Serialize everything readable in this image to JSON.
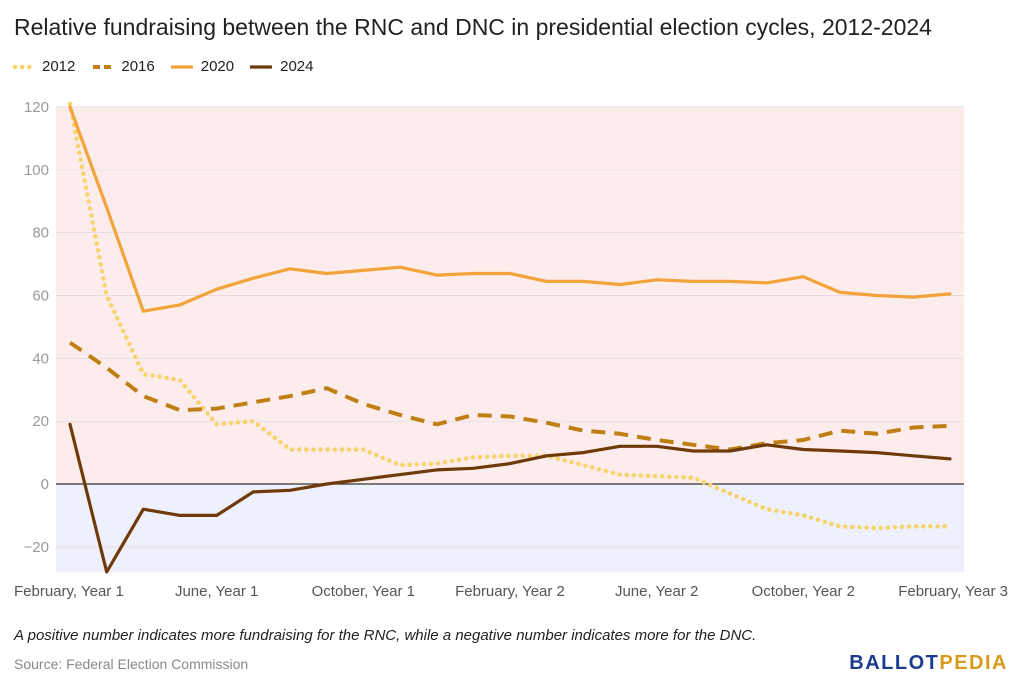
{
  "title": "Relative fundraising between the RNC and DNC in presidential election cycles, 2012-2024",
  "note": "A positive number indicates more fundraising for the RNC, while a negative number indicates more for the DNC.",
  "source": "Source: Federal Election Commission",
  "brand": {
    "part1": "BALLOT",
    "part2": "PEDIA",
    "color1": "#1b3d8f",
    "color2": "#d99a1e"
  },
  "chart_data": {
    "type": "line",
    "title": "Relative fundraising between the RNC and DNC in presidential election cycles, 2012-2024",
    "xlabel": "",
    "ylabel": "",
    "ylim": [
      -28,
      120
    ],
    "y_ticks": [
      -20,
      0,
      20,
      40,
      60,
      80,
      100,
      120
    ],
    "y_tick_labels": [
      "−20",
      "0",
      "20",
      "40",
      "60",
      "80",
      "100",
      "120"
    ],
    "x_tick_labels": [
      "February, Year 1",
      "June, Year 1",
      "October, Year 1",
      "February, Year 2",
      "June, Year 2",
      "October, Year 2",
      "February, Year 3"
    ],
    "x_tick_positions": [
      0,
      4,
      8,
      12,
      16,
      20,
      24
    ],
    "x_count": 25,
    "grid": true,
    "legend_position": "top-left",
    "positive_region_color": "#fcecec",
    "negative_region_color": "#eef0fb",
    "series": [
      {
        "name": "2012",
        "style": "dotted",
        "color": "#f7d46b",
        "values": [
          121,
          60,
          35,
          33,
          19,
          20,
          11,
          11,
          11,
          6,
          6.5,
          8.5,
          9,
          9,
          6,
          3,
          2.5,
          2,
          -3,
          -8,
          -10,
          -13.5,
          -14,
          -13.5,
          -13.5
        ]
      },
      {
        "name": "2016",
        "style": "dashed",
        "color": "#c07f12",
        "values": [
          45,
          37,
          28,
          23.5,
          24,
          26,
          28,
          30.5,
          25.5,
          22,
          19,
          22,
          21.5,
          19.5,
          17,
          16,
          14,
          12.5,
          11,
          13,
          14,
          17,
          16,
          18,
          18.5
        ]
      },
      {
        "name": "2020",
        "style": "solid",
        "color": "#f2a43a",
        "values": [
          120,
          88,
          55,
          57,
          62,
          65.5,
          68.5,
          67,
          68,
          69,
          66.5,
          67,
          67,
          64.5,
          64.5,
          63.5,
          65,
          64.5,
          64.5,
          64,
          66,
          61,
          60,
          59.5,
          60.5
        ]
      },
      {
        "name": "2024",
        "style": "solid",
        "color": "#6e3a0a",
        "values": [
          19,
          -28,
          -8,
          -10,
          -10,
          -2.5,
          -2,
          0,
          1.5,
          3,
          4.5,
          5,
          6.5,
          9,
          10,
          12,
          12,
          10.5,
          10.5,
          12.5,
          11,
          10.5,
          10,
          9,
          8
        ]
      }
    ]
  }
}
